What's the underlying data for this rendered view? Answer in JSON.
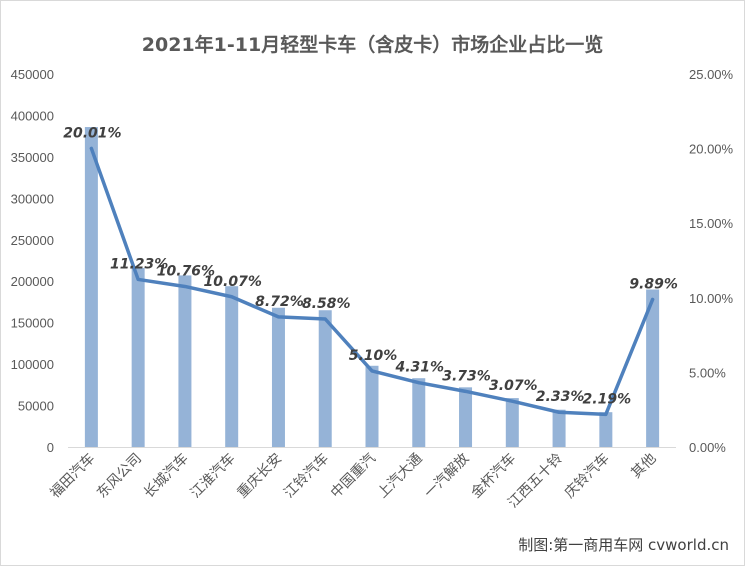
{
  "chart_data": {
    "type": "bar",
    "title": "2021年1-11月轻型卡车（含皮卡）市场企业占比一览",
    "categories": [
      "福田汽车",
      "东风公司",
      "长城汽车",
      "江淮汽车",
      "重庆长安",
      "江铃汽车",
      "中国重汽",
      "上汽大通",
      "一汽解放",
      "金杯汽车",
      "江西五十铃",
      "庆铃汽车",
      "其他"
    ],
    "series": [
      {
        "type": "bar",
        "axis": "left",
        "color": "#95b3d7",
        "values": [
          386000,
          216000,
          207000,
          194000,
          168000,
          165000,
          98000,
          83000,
          72000,
          59000,
          45000,
          42000,
          190000
        ]
      },
      {
        "type": "line",
        "axis": "right",
        "color": "#4f81bd",
        "values": [
          20.01,
          11.23,
          10.76,
          10.07,
          8.72,
          8.58,
          5.1,
          4.31,
          3.73,
          3.07,
          2.33,
          2.19,
          9.89
        ],
        "labels": [
          "20.01%",
          "11.23%",
          "10.76%",
          "10.07%",
          "8.72%",
          "8.58%",
          "5.10%",
          "4.31%",
          "3.73%",
          "3.07%",
          "2.33%",
          "2.19%",
          "9.89%"
        ]
      }
    ],
    "y_left": {
      "range": [
        0,
        450000
      ],
      "ticks": [
        "0",
        "50000",
        "100000",
        "150000",
        "200000",
        "250000",
        "300000",
        "350000",
        "400000",
        "450000"
      ]
    },
    "y_right": {
      "range": [
        0,
        25
      ],
      "ticks": [
        "0.00%",
        "5.00%",
        "10.00%",
        "15.00%",
        "20.00%",
        "25.00%"
      ]
    },
    "grid": false,
    "legend": "none"
  },
  "credit": "制图:第一商用车网 cvworld.cn"
}
